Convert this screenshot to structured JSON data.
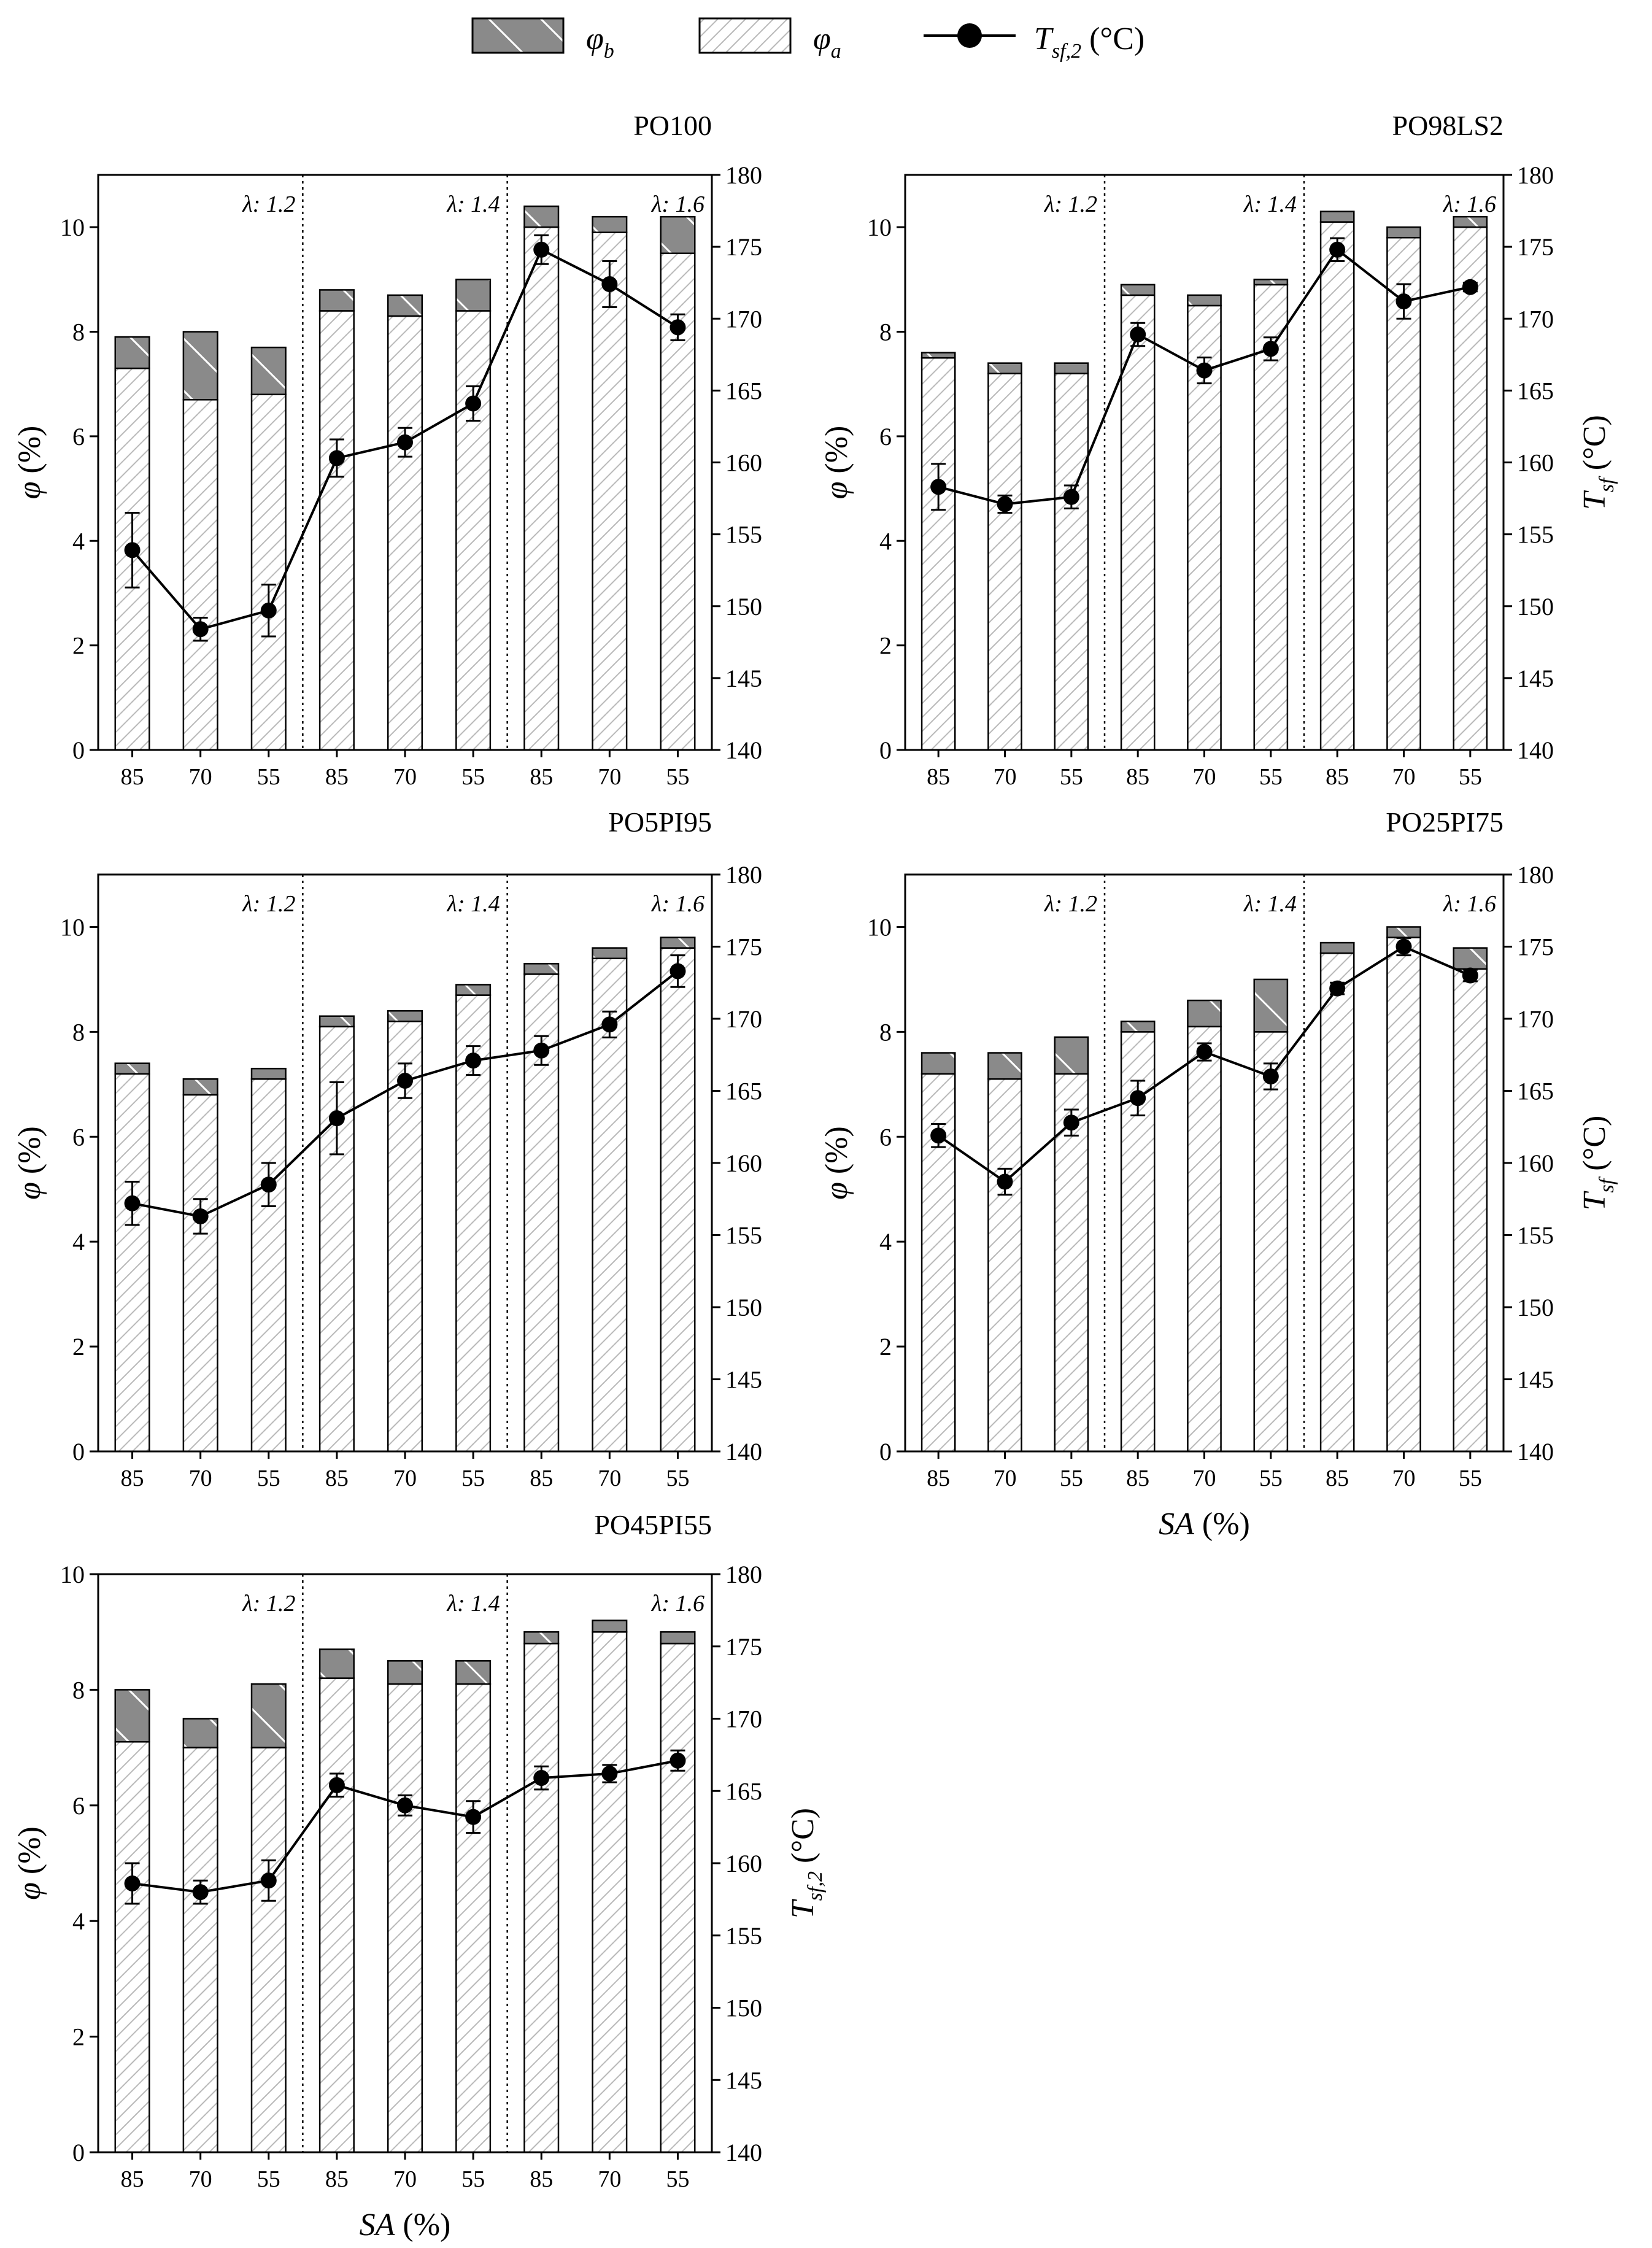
{
  "legend": {
    "items": [
      {
        "key": "phi_b",
        "symbol": "φ",
        "sub": "b",
        "kind": "bar_b"
      },
      {
        "key": "phi_a",
        "symbol": "φ",
        "sub": "a",
        "kind": "bar_a"
      },
      {
        "key": "tsf2",
        "symbol": "T",
        "sub": "sf,2",
        "unit": " (°C)",
        "kind": "line"
      }
    ]
  },
  "colors": {
    "bar_b_fill": "#8a8a8a",
    "bar_a_hatch": "#b9b9b9",
    "line": "#000000",
    "axis": "#000000"
  },
  "chart_data": [
    {
      "type": "bar",
      "title": "PO100",
      "categories": [
        "85",
        "70",
        "55",
        "85",
        "70",
        "55",
        "85",
        "70",
        "55"
      ],
      "groups": [
        "λ: 1.2",
        "λ: 1.4",
        "λ: 1.6"
      ],
      "ylabel": "φ (%)",
      "ylabel_sym": "φ",
      "ylabel_unit": " (%)",
      "ylim": [
        0,
        11
      ],
      "yticks": [
        0,
        2,
        4,
        6,
        8,
        10
      ],
      "y2label": "",
      "y2label_sym": "",
      "y2label_sub": "",
      "y2lim": [
        140,
        180
      ],
      "y2ticks": [
        140,
        145,
        150,
        155,
        160,
        165,
        170,
        175,
        180
      ],
      "xlabel": "",
      "xlabel_sym": "",
      "xlabel_unit": "",
      "series": [
        {
          "name": "φa",
          "values": [
            7.3,
            6.7,
            6.8,
            8.4,
            8.3,
            8.4,
            10.0,
            9.9,
            9.5
          ]
        },
        {
          "name": "φb",
          "values": [
            0.6,
            1.3,
            0.9,
            0.4,
            0.4,
            0.6,
            0.4,
            0.3,
            0.7
          ]
        },
        {
          "name": "Tsf,2",
          "values": [
            153.9,
            148.4,
            149.7,
            160.3,
            161.4,
            164.1,
            174.8,
            172.4,
            169.4
          ],
          "err": [
            2.6,
            0.8,
            1.8,
            1.3,
            1.0,
            1.2,
            1.0,
            1.6,
            0.9
          ]
        }
      ]
    },
    {
      "type": "bar",
      "title": "PO98LS2",
      "categories": [
        "85",
        "70",
        "55",
        "85",
        "70",
        "55",
        "85",
        "70",
        "55"
      ],
      "groups": [
        "λ: 1.2",
        "λ: 1.4",
        "λ: 1.6"
      ],
      "ylabel": "φ (%)",
      "ylabel_sym": "φ",
      "ylabel_unit": " (%)",
      "ylim": [
        0,
        11
      ],
      "yticks": [
        0,
        2,
        4,
        6,
        8,
        10
      ],
      "y2label": "Tsf (°C)",
      "y2label_sym": "T",
      "y2label_sub": "sf",
      "y2lim": [
        140,
        180
      ],
      "y2ticks": [
        140,
        145,
        150,
        155,
        160,
        165,
        170,
        175,
        180
      ],
      "xlabel": "",
      "xlabel_sym": "",
      "xlabel_unit": "",
      "series": [
        {
          "name": "φa",
          "values": [
            7.5,
            7.2,
            7.2,
            8.7,
            8.5,
            8.9,
            10.1,
            9.8,
            10.0
          ]
        },
        {
          "name": "φb",
          "values": [
            0.1,
            0.2,
            0.2,
            0.2,
            0.2,
            0.1,
            0.2,
            0.2,
            0.2
          ]
        },
        {
          "name": "Tsf",
          "values": [
            158.3,
            157.1,
            157.6,
            168.9,
            166.4,
            167.9,
            174.8,
            171.2,
            172.2
          ],
          "err": [
            1.6,
            0.6,
            0.8,
            0.8,
            0.9,
            0.8,
            0.8,
            1.2,
            0.3
          ]
        }
      ]
    },
    {
      "type": "bar",
      "title": "PO5PI95",
      "categories": [
        "85",
        "70",
        "55",
        "85",
        "70",
        "55",
        "85",
        "70",
        "55"
      ],
      "groups": [
        "λ: 1.2",
        "λ: 1.4",
        "λ: 1.6"
      ],
      "ylabel": "φ (%)",
      "ylabel_sym": "φ",
      "ylabel_unit": " (%)",
      "ylim": [
        0,
        11
      ],
      "yticks": [
        0,
        2,
        4,
        6,
        8,
        10
      ],
      "y2label": "",
      "y2label_sym": "",
      "y2label_sub": "",
      "y2lim": [
        140,
        180
      ],
      "y2ticks": [
        140,
        145,
        150,
        155,
        160,
        165,
        170,
        175,
        180
      ],
      "xlabel": "",
      "xlabel_sym": "",
      "xlabel_unit": "",
      "series": [
        {
          "name": "φa",
          "values": [
            7.2,
            6.8,
            7.1,
            8.1,
            8.2,
            8.7,
            9.1,
            9.4,
            9.6
          ]
        },
        {
          "name": "φb",
          "values": [
            0.2,
            0.3,
            0.2,
            0.2,
            0.2,
            0.2,
            0.2,
            0.2,
            0.2
          ]
        },
        {
          "name": "Tsf,2",
          "values": [
            157.2,
            156.3,
            158.5,
            163.1,
            165.7,
            167.1,
            167.8,
            169.6,
            173.3
          ],
          "err": [
            1.5,
            1.2,
            1.5,
            2.5,
            1.2,
            1.0,
            1.0,
            0.9,
            1.1
          ]
        }
      ]
    },
    {
      "type": "bar",
      "title": "PO25PI75",
      "categories": [
        "85",
        "70",
        "55",
        "85",
        "70",
        "55",
        "85",
        "70",
        "55"
      ],
      "groups": [
        "λ: 1.2",
        "λ: 1.4",
        "λ: 1.6"
      ],
      "ylabel": "φ (%)",
      "ylabel_sym": "φ",
      "ylabel_unit": " (%)",
      "ylim": [
        0,
        11
      ],
      "yticks": [
        0,
        2,
        4,
        6,
        8,
        10
      ],
      "y2label": "Tsf (°C)",
      "y2label_sym": "T",
      "y2label_sub": "sf",
      "y2lim": [
        140,
        180
      ],
      "y2ticks": [
        140,
        145,
        150,
        155,
        160,
        165,
        170,
        175,
        180
      ],
      "xlabel": "SA (%)",
      "xlabel_sym": "SA",
      "xlabel_unit": " (%)",
      "series": [
        {
          "name": "φa",
          "values": [
            7.2,
            7.1,
            7.2,
            8.0,
            8.1,
            8.0,
            9.5,
            9.8,
            9.2
          ]
        },
        {
          "name": "φb",
          "values": [
            0.4,
            0.5,
            0.7,
            0.2,
            0.5,
            1.0,
            0.2,
            0.2,
            0.4
          ]
        },
        {
          "name": "Tsf",
          "values": [
            161.9,
            158.7,
            162.8,
            164.5,
            167.7,
            166.0,
            172.1,
            175.0,
            173.0
          ],
          "err": [
            0.8,
            0.9,
            0.9,
            1.2,
            0.6,
            0.9,
            0.4,
            0.6,
            0.4
          ]
        }
      ]
    },
    {
      "type": "bar",
      "title": "PO45PI55",
      "categories": [
        "85",
        "70",
        "55",
        "85",
        "70",
        "55",
        "85",
        "70",
        "55"
      ],
      "groups": [
        "λ: 1.2",
        "λ: 1.4",
        "λ: 1.6"
      ],
      "ylabel": "φ (%)",
      "ylabel_sym": "φ",
      "ylabel_unit": " (%)",
      "ylim": [
        0,
        10
      ],
      "yticks": [
        0,
        2,
        4,
        6,
        8,
        10
      ],
      "y2label": "Tsf2 (°C)",
      "y2label_sym": "T",
      "y2label_sub": "sf,2",
      "y2lim": [
        140,
        180
      ],
      "y2ticks": [
        140,
        145,
        150,
        155,
        160,
        165,
        170,
        175,
        180
      ],
      "xlabel": "SA (%)",
      "xlabel_sym": "SA",
      "xlabel_unit": " (%)",
      "series": [
        {
          "name": "φa",
          "values": [
            7.1,
            7.0,
            7.0,
            8.2,
            8.1,
            8.1,
            8.8,
            9.0,
            8.8
          ]
        },
        {
          "name": "φb",
          "values": [
            0.9,
            0.5,
            1.1,
            0.5,
            0.4,
            0.4,
            0.2,
            0.2,
            0.2
          ]
        },
        {
          "name": "Tsf,2",
          "values": [
            158.6,
            158.0,
            158.8,
            165.4,
            164.0,
            163.2,
            165.9,
            166.2,
            167.1
          ],
          "err": [
            1.4,
            0.8,
            1.4,
            0.8,
            0.7,
            1.1,
            0.8,
            0.6,
            0.7
          ]
        }
      ]
    }
  ]
}
